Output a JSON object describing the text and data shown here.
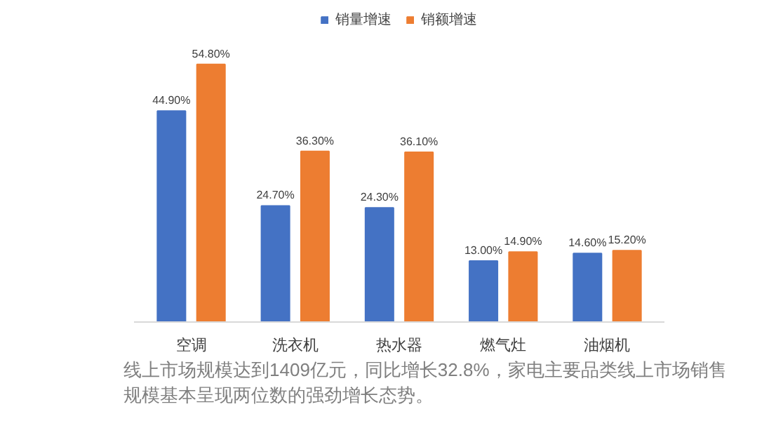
{
  "chart_data": {
    "type": "bar",
    "categories": [
      "空调",
      "洗衣机",
      "热水器",
      "燃气灶",
      "油烟机"
    ],
    "series": [
      {
        "name": "销量增速",
        "color": "#4472c4",
        "values": [
          44.9,
          24.7,
          24.3,
          13.0,
          14.6
        ],
        "value_labels": [
          "44.90%",
          "24.70%",
          "24.30%",
          "13.00%",
          "14.60%"
        ]
      },
      {
        "name": "销额增速",
        "color": "#ed7d31",
        "values": [
          54.8,
          36.3,
          36.1,
          14.9,
          15.2
        ],
        "value_labels": [
          "54.80%",
          "36.30%",
          "36.10%",
          "14.90%",
          "15.20%"
        ]
      }
    ],
    "legend": "top",
    "grid": false,
    "annotations": [
      "线上市场规模达到1409亿元，同比增长32.8%，家电主要品类线上市场销售规模基本呈现两位数的强劲增长态势。"
    ]
  }
}
